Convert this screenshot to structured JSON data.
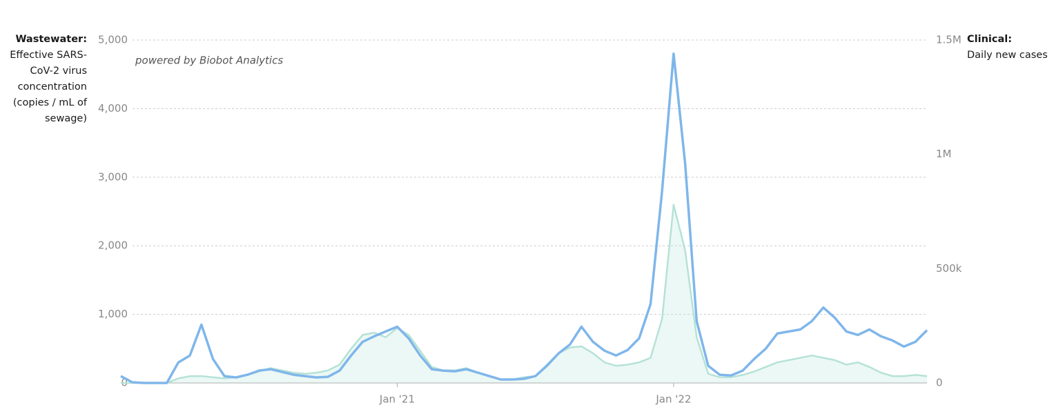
{
  "chart_data": {
    "type": "line",
    "annotation": "powered by Biobot Analytics",
    "y_label": "Effective SARS-CoV-2 virus concentration (copies / mL of sewage)",
    "y2_label": "Daily new cases",
    "grid": true,
    "categories": [
      null,
      null,
      null,
      null,
      null,
      null,
      null,
      null,
      null,
      null,
      null,
      null,
      null,
      null,
      null,
      null,
      null,
      null,
      null,
      null,
      null,
      null,
      null,
      null,
      "Jan '21",
      null,
      null,
      null,
      null,
      null,
      null,
      null,
      null,
      null,
      null,
      null,
      null,
      null,
      null,
      null,
      null,
      null,
      null,
      null,
      null,
      null,
      null,
      null,
      "Jan '22",
      null,
      null,
      null,
      null,
      null,
      null,
      null,
      null,
      null,
      null,
      null,
      null,
      null,
      null,
      null,
      null,
      null,
      null,
      null,
      null,
      null,
      null
    ],
    "ylim": [
      0,
      5000
    ],
    "yticks": [
      0,
      {
        "value": 1000,
        "label": "1,000"
      },
      {
        "value": 2000,
        "label": "2,000"
      },
      {
        "value": 3000,
        "label": "3,000"
      },
      {
        "value": 4000,
        "label": "4,000"
      },
      {
        "value": 5000,
        "label": "5,000"
      }
    ],
    "y2lim": [
      0,
      1500000
    ],
    "y2ticks": [
      0,
      {
        "value": 500000,
        "label": "500k"
      },
      {
        "value": 1000000,
        "label": "1M"
      },
      {
        "value": 1500000,
        "label": "1.5M"
      }
    ],
    "series": [
      {
        "name": "Clinical:",
        "color": "#b5e2d6",
        "axis": "y2",
        "values": [
          0,
          0,
          0,
          0,
          0,
          20000,
          30000,
          30000,
          25000,
          20000,
          25000,
          35000,
          50000,
          65000,
          55000,
          45000,
          40000,
          45000,
          55000,
          80000,
          150000,
          210000,
          220000,
          200000,
          240000,
          210000,
          140000,
          70000,
          55000,
          55000,
          65000,
          45000,
          30000,
          15000,
          15000,
          25000,
          30000,
          80000,
          130000,
          155000,
          160000,
          130000,
          90000,
          75000,
          80000,
          90000,
          110000,
          280000,
          780000,
          580000,
          200000,
          40000,
          25000,
          25000,
          35000,
          50000,
          70000,
          90000,
          100000,
          110000,
          120000,
          110000,
          100000,
          80000,
          90000,
          70000,
          45000,
          30000,
          30000,
          35000,
          30000
        ]
      },
      {
        "name": "Wastewater:",
        "color": "#7fb6ea",
        "axis": "y",
        "values": [
          100,
          10,
          0,
          0,
          0,
          300,
          400,
          850,
          350,
          100,
          80,
          120,
          180,
          200,
          160,
          120,
          100,
          80,
          90,
          180,
          400,
          600,
          680,
          750,
          820,
          650,
          400,
          200,
          180,
          170,
          200,
          150,
          100,
          50,
          50,
          60,
          100,
          250,
          430,
          560,
          820,
          600,
          470,
          400,
          480,
          650,
          1150,
          2800,
          4800,
          3200,
          900,
          250,
          120,
          110,
          180,
          350,
          500,
          720,
          750,
          780,
          900,
          1100,
          950,
          750,
          700,
          780,
          680,
          620,
          530,
          600,
          770
        ]
      }
    ]
  }
}
